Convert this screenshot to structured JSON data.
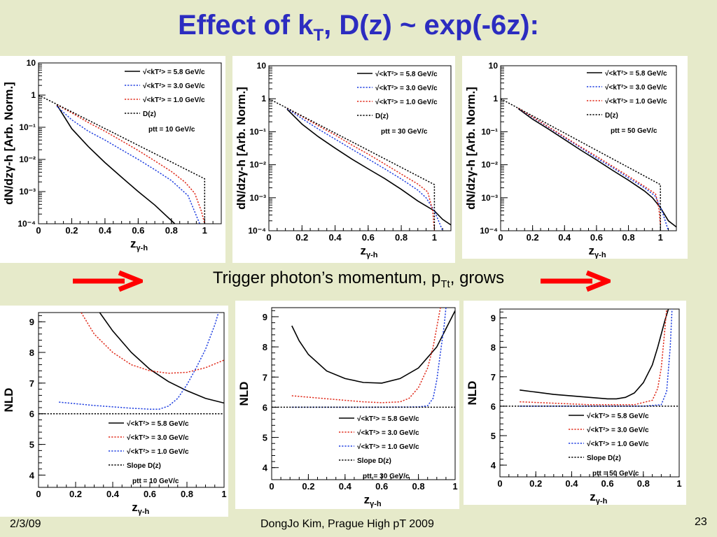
{
  "slide": {
    "title_main": "Effect of k",
    "title_sub": "T",
    "title_rest": ", D(z) ~ exp(-6z):",
    "caption_main": "Trigger photon’s momentum, p",
    "caption_sub": "Tt",
    "caption_rest": ", grows",
    "footer_date": "2/3/09",
    "footer_center": "DongJo Kim, Prague High pT 2009",
    "page_number": "23"
  },
  "colors": {
    "background": "#e6eaca",
    "title": "#2c2cc0",
    "arrow": "#ff0000",
    "kt_5_8": "#000000",
    "kt_3_0": "#1f3fe0",
    "kt_1_0": "#e02a1a",
    "dz": "#000000"
  },
  "chart_data": [
    {
      "type": "line",
      "ptt_label": "ptt = 10 GeV/c",
      "ylabel": "dN/dzγ-h [Arb. Norm.]",
      "xlabel": "zγ-h",
      "xlim": [
        0,
        1.1
      ],
      "ylim": [
        0.0001,
        10
      ],
      "yscale": "log",
      "xticks": [
        "0",
        "0.2",
        "0.4",
        "0.6",
        "0.8",
        "1"
      ],
      "yticks": [
        "10⁻⁴",
        "10⁻³",
        "10⁻²",
        "10⁻¹",
        "1",
        "10"
      ],
      "series": [
        {
          "name": "√<kT²> = 5.8 GeV/c",
          "style": "solid",
          "color": "#000000",
          "x": [
            0.11,
            0.2,
            0.3,
            0.4,
            0.5,
            0.6,
            0.7,
            0.82
          ],
          "y": [
            0.5,
            0.09,
            0.025,
            0.008,
            0.0028,
            0.001,
            0.00038,
            0.0001
          ]
        },
        {
          "name": "√<kT²> = 3.0 GeV/c",
          "style": "dotted",
          "color": "#1f3fe0",
          "x": [
            0.11,
            0.2,
            0.3,
            0.4,
            0.5,
            0.6,
            0.7,
            0.8,
            0.9,
            0.97
          ],
          "y": [
            0.45,
            0.17,
            0.075,
            0.04,
            0.02,
            0.01,
            0.0048,
            0.0022,
            0.00075,
            0.0001
          ]
        },
        {
          "name": "√<kT²> = 1.0 GeV/c",
          "style": "dotted",
          "color": "#e02a1a",
          "x": [
            0.11,
            0.2,
            0.3,
            0.4,
            0.5,
            0.6,
            0.7,
            0.8,
            0.88,
            0.94,
            0.98,
            1.0
          ],
          "y": [
            0.5,
            0.28,
            0.14,
            0.075,
            0.038,
            0.019,
            0.009,
            0.0042,
            0.002,
            0.0009,
            0.00025,
            0.0001
          ]
        },
        {
          "name": "D(z)",
          "style": "dotted",
          "color": "#000000",
          "x": [
            0,
            1.0,
            1.0
          ],
          "y": [
            1.0,
            0.0025,
            0.0001
          ]
        }
      ]
    },
    {
      "type": "line",
      "ptt_label": "ptt = 30 GeV/c",
      "ylabel": "dN/dzγ-h [Arb. Norm.]",
      "xlabel": "zγ-h",
      "xlim": [
        0,
        1.1
      ],
      "ylim": [
        0.0001,
        10
      ],
      "yscale": "log",
      "xticks": [
        "0",
        "0.2",
        "0.4",
        "0.6",
        "0.8",
        "1"
      ],
      "yticks": [
        "10⁻⁴",
        "10⁻³",
        "10⁻²",
        "10⁻¹",
        "1",
        "10"
      ],
      "series": [
        {
          "name": "√<kT²> = 5.8 GeV/c",
          "style": "solid",
          "color": "#000000",
          "x": [
            0.11,
            0.2,
            0.3,
            0.4,
            0.5,
            0.6,
            0.7,
            0.8,
            0.9,
            1.0,
            1.05,
            1.1
          ],
          "y": [
            0.48,
            0.17,
            0.07,
            0.032,
            0.015,
            0.0075,
            0.0038,
            0.0018,
            0.0008,
            0.0004,
            0.00022,
            0.00015
          ]
        },
        {
          "name": "√<kT²> = 3.0 GeV/c",
          "style": "dotted",
          "color": "#1f3fe0",
          "x": [
            0.11,
            0.2,
            0.3,
            0.4,
            0.5,
            0.6,
            0.7,
            0.8,
            0.9,
            0.95,
            1.0,
            1.05
          ],
          "y": [
            0.5,
            0.25,
            0.12,
            0.06,
            0.03,
            0.015,
            0.0075,
            0.0037,
            0.0017,
            0.001,
            0.0004,
            0.0001
          ]
        },
        {
          "name": "√<kT²> = 1.0 GeV/c",
          "style": "dotted",
          "color": "#e02a1a",
          "x": [
            0.11,
            0.2,
            0.3,
            0.4,
            0.5,
            0.6,
            0.7,
            0.8,
            0.9,
            0.96,
            0.99,
            1.0
          ],
          "y": [
            0.52,
            0.29,
            0.15,
            0.08,
            0.04,
            0.021,
            0.0105,
            0.0052,
            0.0026,
            0.0015,
            0.0004,
            0.0001
          ]
        },
        {
          "name": "D(z)",
          "style": "dotted",
          "color": "#000000",
          "x": [
            0,
            1.0,
            1.0
          ],
          "y": [
            1.0,
            0.0025,
            0.0001
          ]
        }
      ]
    },
    {
      "type": "line",
      "ptt_label": "ptt = 50 GeV/c",
      "ylabel": "dN/dzγ-h [Arb. Norm.]",
      "xlabel": "zγ-h",
      "xlim": [
        0,
        1.1
      ],
      "ylim": [
        0.0001,
        10
      ],
      "yscale": "log",
      "xticks": [
        "0",
        "0.2",
        "0.4",
        "0.6",
        "0.8",
        "1"
      ],
      "yticks": [
        "10⁻⁴",
        "10⁻³",
        "10⁻²",
        "10⁻¹",
        "1",
        "10"
      ],
      "series": [
        {
          "name": "√<kT²> = 5.8 GeV/c",
          "style": "solid",
          "color": "#000000",
          "x": [
            0.11,
            0.2,
            0.3,
            0.4,
            0.5,
            0.6,
            0.7,
            0.8,
            0.9,
            0.95,
            1.0,
            1.05,
            1.1
          ],
          "y": [
            0.5,
            0.24,
            0.12,
            0.058,
            0.028,
            0.014,
            0.0068,
            0.0034,
            0.0016,
            0.001,
            0.0005,
            0.0002,
            0.00013
          ]
        },
        {
          "name": "√<kT²> = 3.0 GeV/c",
          "style": "dotted",
          "color": "#1f3fe0",
          "x": [
            0.11,
            0.2,
            0.3,
            0.4,
            0.5,
            0.6,
            0.7,
            0.8,
            0.9,
            0.97,
            1.01,
            1.05
          ],
          "y": [
            0.51,
            0.27,
            0.135,
            0.066,
            0.033,
            0.016,
            0.0082,
            0.004,
            0.002,
            0.0011,
            0.0004,
            0.0001
          ]
        },
        {
          "name": "√<kT²> = 1.0 GeV/c",
          "style": "dotted",
          "color": "#e02a1a",
          "x": [
            0.11,
            0.2,
            0.3,
            0.4,
            0.5,
            0.6,
            0.7,
            0.8,
            0.9,
            0.97,
            0.99,
            1.0
          ],
          "y": [
            0.52,
            0.28,
            0.14,
            0.07,
            0.035,
            0.018,
            0.009,
            0.0045,
            0.0022,
            0.0013,
            0.0005,
            0.00015
          ]
        },
        {
          "name": "D(z)",
          "style": "dotted",
          "color": "#000000",
          "x": [
            0,
            1.0,
            1.0
          ],
          "y": [
            1.0,
            0.0025,
            0.0001
          ]
        }
      ]
    },
    {
      "type": "line",
      "ptt_label": "ptt = 10 GeV/c",
      "ylabel": "NLD",
      "xlabel": "zγ-h",
      "xlim": [
        0,
        1
      ],
      "ylim": [
        3.6,
        9.3
      ],
      "xticks": [
        "0",
        "0.2",
        "0.4",
        "0.6",
        "0.8",
        "1"
      ],
      "yticks": [
        "4",
        "5",
        "6",
        "7",
        "8",
        "9"
      ],
      "series": [
        {
          "name": "√<kT²> = 5.8 GeV/c",
          "style": "solid",
          "color": "#000000",
          "x": [
            0.33,
            0.4,
            0.5,
            0.6,
            0.7,
            0.8,
            0.9,
            1.0
          ],
          "y": [
            9.3,
            8.7,
            8.0,
            7.45,
            7.05,
            6.75,
            6.5,
            6.35
          ]
        },
        {
          "name": "√<kT²> = 3.0 GeV/c",
          "style": "dotted",
          "color": "#e02a1a",
          "x": [
            0.23,
            0.3,
            0.4,
            0.5,
            0.6,
            0.7,
            0.8,
            0.9,
            1.0
          ],
          "y": [
            9.3,
            8.6,
            8.0,
            7.6,
            7.4,
            7.32,
            7.35,
            7.5,
            7.75
          ]
        },
        {
          "name": "√<kT²> = 1.0 GeV/c",
          "style": "dotted",
          "color": "#1f3fe0",
          "x": [
            0.11,
            0.3,
            0.5,
            0.6,
            0.65,
            0.7,
            0.75,
            0.8,
            0.85,
            0.9,
            0.95,
            0.97
          ],
          "y": [
            6.38,
            6.27,
            6.18,
            6.15,
            6.15,
            6.25,
            6.5,
            6.95,
            7.5,
            8.1,
            8.9,
            9.3
          ]
        },
        {
          "name": "Slope D(z)",
          "style": "dotted",
          "color": "#000000",
          "x": [
            0,
            1
          ],
          "y": [
            6.0,
            6.0
          ]
        }
      ]
    },
    {
      "type": "line",
      "ptt_label": "ptt = 30 GeV/c",
      "ylabel": "NLD",
      "xlabel": "zγ-h",
      "xlim": [
        0,
        1
      ],
      "ylim": [
        3.6,
        9.3
      ],
      "xticks": [
        "0",
        "0.2",
        "0.4",
        "0.6",
        "0.8",
        "1"
      ],
      "yticks": [
        "4",
        "5",
        "6",
        "7",
        "8",
        "9"
      ],
      "series": [
        {
          "name": "√<kT²> = 5.8 GeV/c",
          "style": "solid",
          "color": "#000000",
          "x": [
            0.11,
            0.15,
            0.2,
            0.3,
            0.4,
            0.5,
            0.6,
            0.7,
            0.8,
            0.9,
            1.0
          ],
          "y": [
            8.7,
            8.2,
            7.75,
            7.2,
            6.95,
            6.82,
            6.8,
            6.95,
            7.3,
            8.0,
            9.2
          ]
        },
        {
          "name": "√<kT²> = 3.0 GeV/c",
          "style": "dotted",
          "color": "#e02a1a",
          "x": [
            0.11,
            0.3,
            0.5,
            0.6,
            0.7,
            0.75,
            0.8,
            0.85,
            0.88,
            0.92
          ],
          "y": [
            6.38,
            6.28,
            6.18,
            6.15,
            6.18,
            6.3,
            6.65,
            7.3,
            8.0,
            9.3
          ]
        },
        {
          "name": "√<kT²> = 1.0 GeV/c",
          "style": "dotted",
          "color": "#1f3fe0",
          "x": [
            0.11,
            0.5,
            0.8,
            0.85,
            0.88,
            0.9,
            0.92,
            0.94,
            0.95
          ],
          "y": [
            6.0,
            6.0,
            6.01,
            6.05,
            6.3,
            6.9,
            7.8,
            8.7,
            9.3
          ]
        },
        {
          "name": "Slope D(z)",
          "style": "dotted",
          "color": "#000000",
          "x": [
            0,
            1
          ],
          "y": [
            6.0,
            6.0
          ]
        }
      ]
    },
    {
      "type": "line",
      "ptt_label": "ptt = 50 GeV/c",
      "ylabel": "NLD",
      "xlabel": "zγ-h",
      "xlim": [
        0,
        1
      ],
      "ylim": [
        3.6,
        9.3
      ],
      "xticks": [
        "0",
        "0.2",
        "0.4",
        "0.6",
        "0.8",
        "1"
      ],
      "yticks": [
        "4",
        "5",
        "6",
        "7",
        "8",
        "9"
      ],
      "series": [
        {
          "name": "√<kT²> = 5.8 GeV/c",
          "style": "solid",
          "color": "#000000",
          "x": [
            0.11,
            0.3,
            0.5,
            0.6,
            0.65,
            0.7,
            0.75,
            0.8,
            0.85,
            0.88,
            0.92,
            0.94
          ],
          "y": [
            6.55,
            6.4,
            6.3,
            6.25,
            6.25,
            6.3,
            6.45,
            6.8,
            7.4,
            8.0,
            8.9,
            9.3
          ]
        },
        {
          "name": "√<kT²> = 3.0 GeV/c",
          "style": "dotted",
          "color": "#e02a1a",
          "x": [
            0.11,
            0.5,
            0.75,
            0.85,
            0.88,
            0.9,
            0.92,
            0.93
          ],
          "y": [
            6.15,
            6.05,
            6.05,
            6.2,
            6.6,
            7.3,
            8.6,
            9.3
          ]
        },
        {
          "name": "√<kT²> = 1.0 GeV/c",
          "style": "dotted",
          "color": "#1f3fe0",
          "x": [
            0.11,
            0.8,
            0.9,
            0.93,
            0.95,
            0.96
          ],
          "y": [
            6.0,
            6.0,
            6.05,
            6.5,
            8.0,
            9.3
          ]
        },
        {
          "name": "Slope D(z)",
          "style": "dotted",
          "color": "#000000",
          "x": [
            0,
            1
          ],
          "y": [
            6.0,
            6.0
          ]
        }
      ]
    }
  ]
}
